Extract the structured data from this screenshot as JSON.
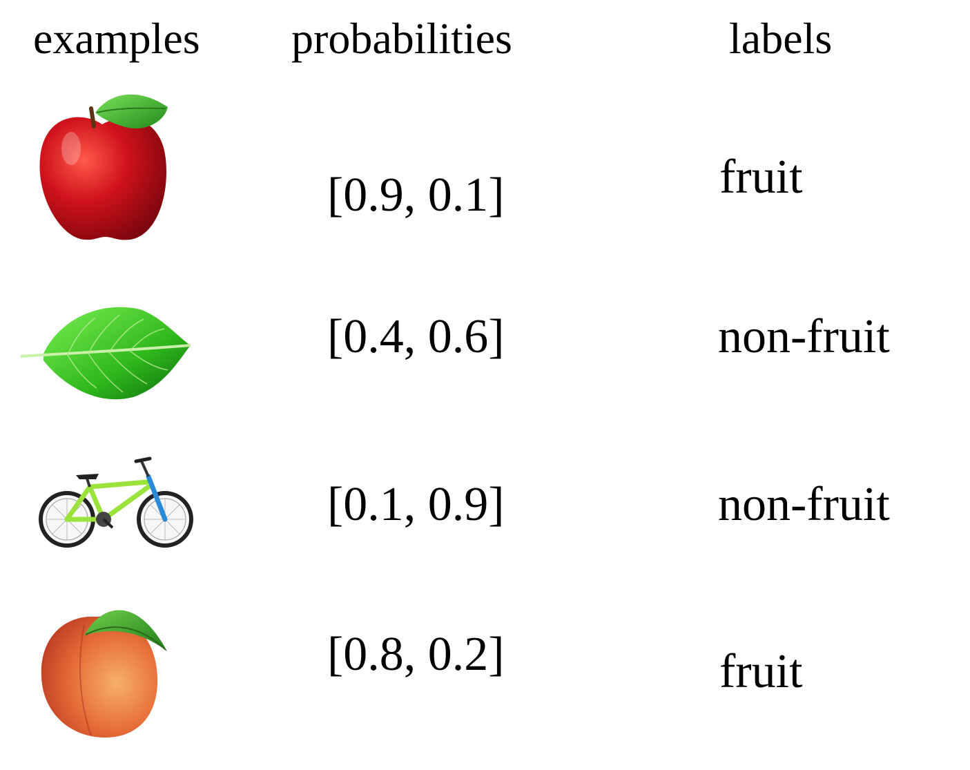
{
  "headers": {
    "examples": "examples",
    "probabilities": "probabilities",
    "labels": "labels"
  },
  "rows": [
    {
      "image": "apple",
      "probabilities": "[0.9, 0.1]",
      "label": "fruit"
    },
    {
      "image": "leaf",
      "probabilities": "[0.4, 0.6]",
      "label": "non-fruit"
    },
    {
      "image": "bicycle",
      "probabilities": "[0.1, 0.9]",
      "label": "non-fruit"
    },
    {
      "image": "peach",
      "probabilities": "[0.8, 0.2]",
      "label": "fruit"
    }
  ],
  "colors": {
    "apple": "#c8101a",
    "leaf": "#3cc21e",
    "bicycle_frame": "#9be23a",
    "peach": "#e86a3a"
  }
}
